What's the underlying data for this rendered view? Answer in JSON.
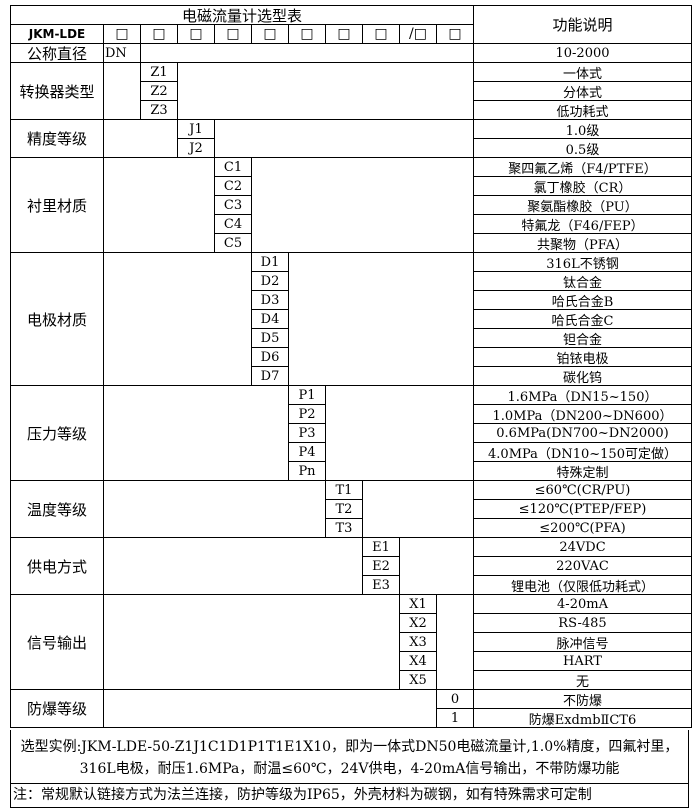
{
  "header": {
    "title": "电磁流量计选型表",
    "function_header": "功能说明",
    "model": "JKM-LDE",
    "boxes": [
      "□",
      "□",
      "□",
      "□",
      "□",
      "□",
      "□",
      "□",
      "/□",
      "□"
    ]
  },
  "diameter": {
    "label": "公称直径",
    "code": "DN",
    "desc": "10-2000"
  },
  "groups": [
    {
      "label": "转换器类型",
      "items": [
        {
          "code": "Z1",
          "desc": "一体式"
        },
        {
          "code": "Z2",
          "desc": "分体式"
        },
        {
          "code": "Z3",
          "desc": "低功耗式"
        }
      ]
    },
    {
      "label": "精度等级",
      "items": [
        {
          "code": "J1",
          "desc": "1.0级"
        },
        {
          "code": "J2",
          "desc": "0.5级"
        }
      ]
    },
    {
      "label": "衬里材质",
      "items": [
        {
          "code": "C1",
          "desc": "聚四氟乙烯（F4/PTFE）"
        },
        {
          "code": "C2",
          "desc": "氯丁橡胶（CR）"
        },
        {
          "code": "C3",
          "desc": "聚氨酯橡胶（PU）"
        },
        {
          "code": "C4",
          "desc": "特氟龙（F46/FEP）"
        },
        {
          "code": "C5",
          "desc": "共聚物（PFA）"
        }
      ]
    },
    {
      "label": "电极材质",
      "items": [
        {
          "code": "D1",
          "desc": "316L不锈钢"
        },
        {
          "code": "D2",
          "desc": "钛合金"
        },
        {
          "code": "D3",
          "desc": "哈氏合金B"
        },
        {
          "code": "D4",
          "desc": "哈氏合金C"
        },
        {
          "code": "D5",
          "desc": "钽合金"
        },
        {
          "code": "D6",
          "desc": "铂铱电极"
        },
        {
          "code": "D7",
          "desc": "碳化钨"
        }
      ]
    },
    {
      "label": "压力等级",
      "items": [
        {
          "code": "P1",
          "desc": "1.6MPa（DN15~150）"
        },
        {
          "code": "P2",
          "desc": "1.0MPa（DN200~DN600）"
        },
        {
          "code": "P3",
          "desc": "0.6MPa(DN700~DN2000)"
        },
        {
          "code": "P4",
          "desc": "4.0MPa（DN10~150可定做）"
        },
        {
          "code": "Pn",
          "desc": "特殊定制"
        }
      ]
    },
    {
      "label": "温度等级",
      "items": [
        {
          "code": "T1",
          "desc": "≤60℃(CR/PU)"
        },
        {
          "code": "T2",
          "desc": "≤120℃(PTEP/FEP)"
        },
        {
          "code": "T3",
          "desc": "≤200℃(PFA)"
        }
      ]
    },
    {
      "label": "供电方式",
      "items": [
        {
          "code": "E1",
          "desc": "24VDC"
        },
        {
          "code": "E2",
          "desc": "220VAC"
        },
        {
          "code": "E3",
          "desc": "锂电池（仅限低功耗式）"
        }
      ]
    },
    {
      "label": "信号输出",
      "items": [
        {
          "code": "X1",
          "desc": "4-20mA"
        },
        {
          "code": "X2",
          "desc": "RS-485"
        },
        {
          "code": "X3",
          "desc": "脉冲信号"
        },
        {
          "code": "X4",
          "desc": "HART"
        },
        {
          "code": "X5",
          "desc": "无"
        }
      ]
    },
    {
      "label": "防爆等级",
      "items": [
        {
          "code": "0",
          "desc": "不防爆"
        },
        {
          "code": "1",
          "desc": "防爆ExdmbⅡCT6"
        }
      ]
    }
  ],
  "example_line1": "选型实例:JKM-LDE-50-Z1J1C1D1P1T1E1X10，即为一体式DN50电磁流量计,1.0%精度，四氟衬里，",
  "example_line2": "316L电极，耐压1.6MPa，耐温≤60℃，24V供电，4-20mA信号输出，不带防爆功能",
  "note": "注：常规默认链接方式为法兰连接，防护等级为IP65，外壳材料为碳钢，如有特殊需求可定制"
}
